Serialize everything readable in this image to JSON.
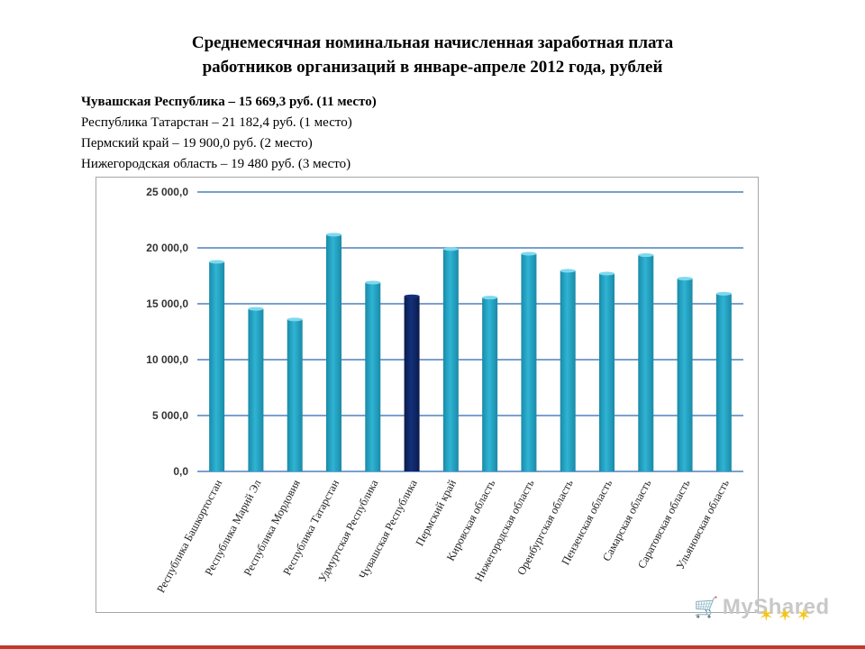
{
  "title": {
    "line1": "Среднемесячная номинальная начисленная заработная плата",
    "line2": "работников организаций   в январе-апреле 2012 года, рублей"
  },
  "notes": [
    "Чувашская Республика – 15 669,3 руб. (11 место)",
    "Республика Татарстан – 21 182,4 руб. (1 место)",
    "Пермский край – 19 900,0 руб. (2 место)",
    "Нижегородская область –  19 480 руб. (3 место)"
  ],
  "watermark": {
    "text": "MyShared"
  },
  "chart_data": {
    "type": "bar",
    "categories": [
      "Республика Башкортостан",
      "Республика Марий Эл",
      "Республика Мордовия",
      "Республика Татарстан",
      "Удмуртская Республика",
      "Чувашская Республика",
      "Пермский край",
      "Кировская область",
      "Нижегородская область",
      "Оренбургская область",
      "Пензенская область",
      "Самарская область",
      "Саратовская область",
      "Ульяновская область"
    ],
    "values": [
      18750,
      14550,
      13600,
      21182.4,
      16900,
      15669.3,
      19900,
      15550,
      19480,
      17950,
      17700,
      19350,
      17250,
      15900
    ],
    "highlight_index": 5,
    "colors": {
      "bar": "#2fb4d4",
      "bar_dark": "#1a8aa8",
      "highlight": "#13307a",
      "highlight_dark": "#0a1c4c",
      "grid": "#4f81bd"
    },
    "ylim": [
      0,
      25000
    ],
    "yticks": [
      "0,0",
      "5 000,0",
      "10 000,0",
      "15 000,0",
      "20 000,0",
      "25 000,0"
    ],
    "ytick_values": [
      0,
      5000,
      10000,
      15000,
      20000,
      25000
    ],
    "grid": true,
    "xlabel": "",
    "ylabel": ""
  }
}
